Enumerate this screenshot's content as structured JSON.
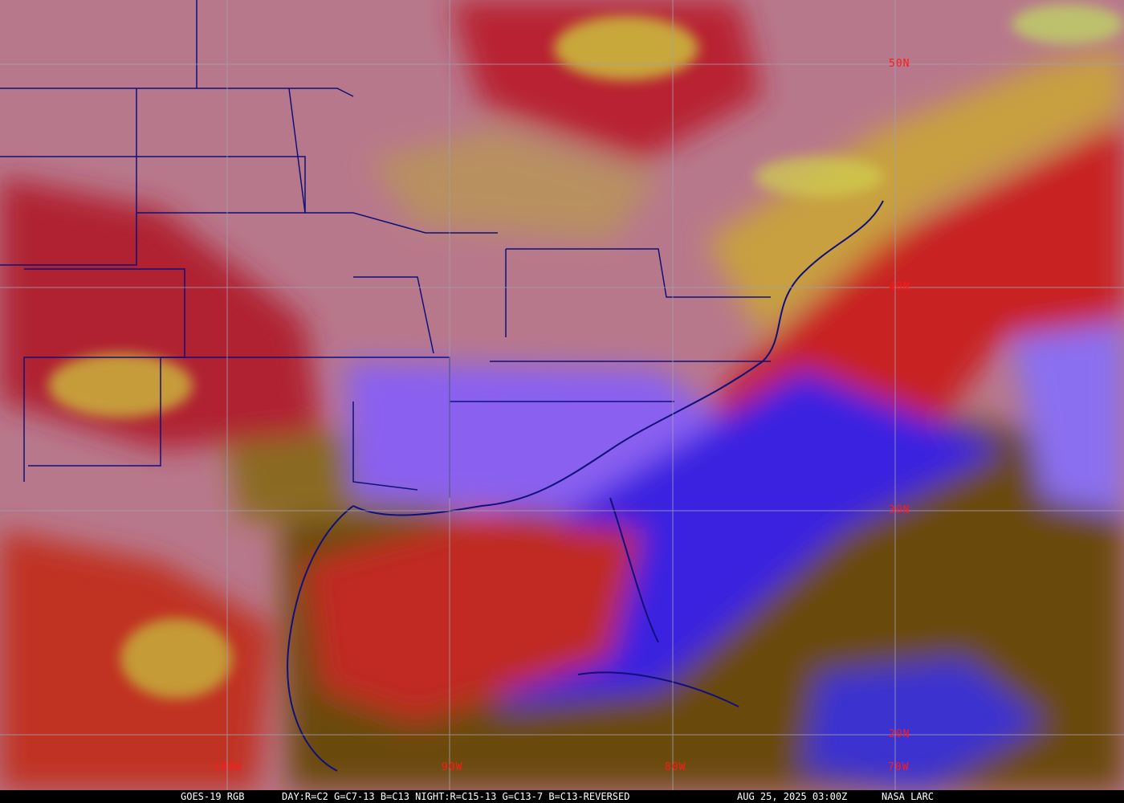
{
  "image": {
    "satellite": "GOES-19 RGB",
    "recipe": "DAY:R=C2 G=C7-13 B=C13 NIGHT:R=C15-13 G=C13-7 B=C13-REVERSED",
    "timestamp": "AUG 25, 2025 03:00Z",
    "credit": "NASA LARC"
  },
  "grid": {
    "longitudes": [
      "100W",
      "90W",
      "80W",
      "70W"
    ],
    "latitudes": [
      "50N",
      "40N",
      "30N",
      "20N"
    ],
    "line_color": "#a0a0b0",
    "label_color": "#ff1a1a"
  },
  "colors": {
    "land_clear": "#c07a8a",
    "ocean_clear": "#7a5a10",
    "high_cloud": "#d02020",
    "low_cloud": "#5a30ff",
    "mid_cloud": "#d0e040",
    "borders": "#10107a"
  }
}
